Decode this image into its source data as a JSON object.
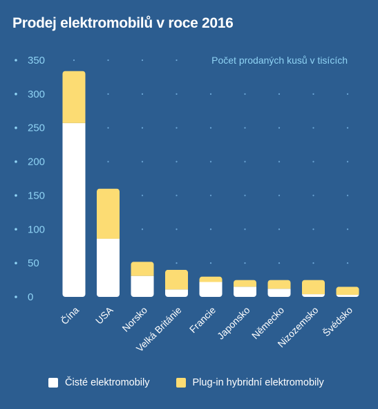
{
  "title": "Prodej elektromobilů v roce 2016",
  "colors": {
    "background": "#2c5d90",
    "pure": "#ffffff",
    "phev": "#fcdc73",
    "axis": "#8fd3f4"
  },
  "chart_data": {
    "type": "bar",
    "stacked": true,
    "title": "Prodej elektromobilů v roce 2016",
    "note": "Počet prodaných kusů v tisících",
    "categories": [
      "Čína",
      "USA",
      "Norsko",
      "Velká Británie",
      "Francie",
      "Japonsko",
      "Německo",
      "Nizozemsko",
      "Švédsko"
    ],
    "series": [
      {
        "name": "Čisté elektromobily",
        "values": [
          257,
          86,
          31,
          11,
          22,
          15,
          12,
          4,
          3
        ]
      },
      {
        "name": "Plug-in hybridní elektromobily",
        "values": [
          77,
          74,
          21,
          29,
          8,
          10,
          13,
          21,
          12
        ]
      }
    ],
    "ylim": [
      0,
      350
    ],
    "yticks": [
      0,
      50,
      100,
      150,
      200,
      250,
      300,
      350
    ],
    "grid": "dotted",
    "legend_position": "bottom"
  }
}
